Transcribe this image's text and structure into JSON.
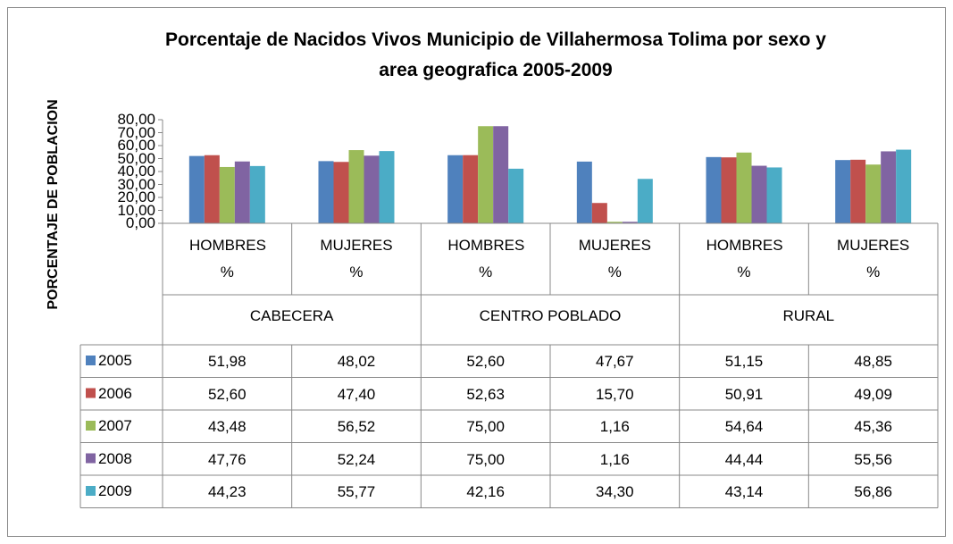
{
  "chart_data": {
    "type": "bar",
    "title": "Porcentaje de Nacidos Vivos Municipio de Villahermosa  Tolima por sexo y area geografica 2005-2009",
    "y_label": "PORCENTAJE DE POBLACION",
    "categories": [
      "HOMBRES %",
      "MUJERES %",
      "HOMBRES %",
      "MUJERES %",
      "HOMBRES %",
      "MUJERES %"
    ],
    "groups": [
      "CABECERA",
      "CENTRO POBLADO",
      "RURAL"
    ],
    "ylim": [
      0,
      80
    ],
    "yticks": [
      {
        "value": 0,
        "label": "0,00"
      },
      {
        "value": 10,
        "label": "10,00"
      },
      {
        "value": 20,
        "label": "20,00"
      },
      {
        "value": 30,
        "label": "30,00"
      },
      {
        "value": 40,
        "label": "40,00"
      },
      {
        "value": 50,
        "label": "50,00"
      },
      {
        "value": 60,
        "label": "60,00"
      },
      {
        "value": 70,
        "label": "70,00"
      },
      {
        "value": 80,
        "label": "80,00"
      }
    ],
    "series": [
      {
        "name": "2005",
        "color": "#4f81bd",
        "values": [
          51.98,
          48.02,
          52.6,
          47.67,
          51.15,
          48.85
        ],
        "value_labels": [
          "51,98",
          "48,02",
          "52,60",
          "47,67",
          "51,15",
          "48,85"
        ]
      },
      {
        "name": "2006",
        "color": "#c0504d",
        "values": [
          52.6,
          47.4,
          52.63,
          15.7,
          50.91,
          49.09
        ],
        "value_labels": [
          "52,60",
          "47,40",
          "52,63",
          "15,70",
          "50,91",
          "49,09"
        ]
      },
      {
        "name": "2007",
        "color": "#9bbb59",
        "values": [
          43.48,
          56.52,
          75.0,
          1.16,
          54.64,
          45.36
        ],
        "value_labels": [
          "43,48",
          "56,52",
          "75,00",
          "1,16",
          "54,64",
          "45,36"
        ]
      },
      {
        "name": "2008",
        "color": "#8064a2",
        "values": [
          47.76,
          52.24,
          75.0,
          1.16,
          44.44,
          55.56
        ],
        "value_labels": [
          "47,76",
          "52,24",
          "75,00",
          "1,16",
          "44,44",
          "55,56"
        ]
      },
      {
        "name": "2009",
        "color": "#4bacc6",
        "values": [
          44.23,
          55.77,
          42.16,
          34.3,
          43.14,
          56.86
        ],
        "value_labels": [
          "44,23",
          "55,77",
          "42,16",
          "34,30",
          "43,14",
          "56,86"
        ]
      }
    ]
  }
}
